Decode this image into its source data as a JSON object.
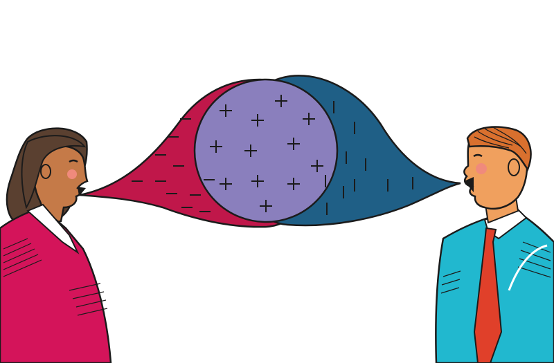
{
  "illustration": {
    "speech_bubble": {
      "left_mark": "−",
      "right_mark": "|",
      "overlap_mark": "+"
    },
    "colors": {
      "background": "#ffffff",
      "outline": "#1b1b1b",
      "left_bubble": "#c0174a",
      "right_bubble": "#1f5f86",
      "overlap": "#8a7fbd",
      "woman_jacket": "#d4145a",
      "woman_hair": "#5a4030",
      "man_shirt": "#21b8cf",
      "man_tie": "#e0402a",
      "man_hair": "#d9702e",
      "skin": "#f0a05e",
      "skin_dark": "#c57a48",
      "cheek": "#f08a7c",
      "collar": "#ffffff"
    }
  }
}
